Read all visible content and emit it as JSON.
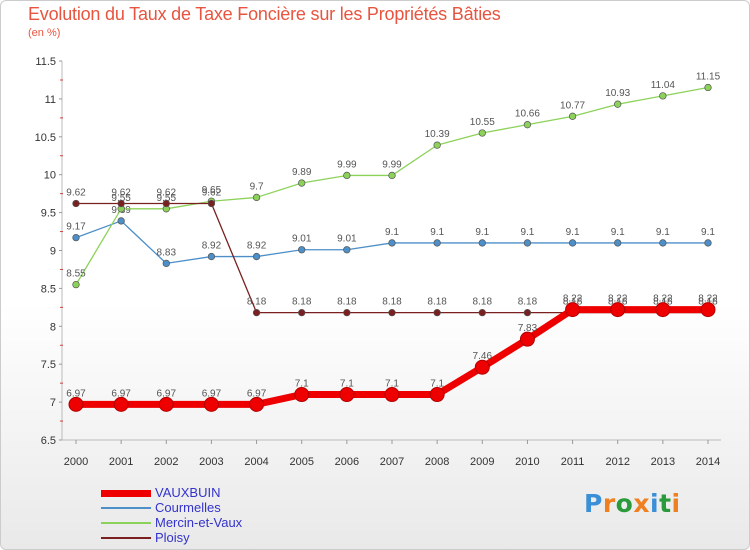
{
  "title": "Evolution du Taux de Taxe Foncière sur les Propriétés Bâties",
  "subtitle": "(en %)",
  "brand": {
    "text": "Proxiti",
    "letters": [
      {
        "ch": "P",
        "color": "#3a8fd6"
      },
      {
        "ch": "r",
        "color": "#f07f1f"
      },
      {
        "ch": "o",
        "color": "#2a9a3a"
      },
      {
        "ch": "x",
        "color": "#f07f1f"
      },
      {
        "ch": "i",
        "color": "#3a8fd6"
      },
      {
        "ch": "t",
        "color": "#2a9a3a"
      },
      {
        "ch": "i",
        "color": "#f07f1f"
      }
    ]
  },
  "chart_data": {
    "type": "line",
    "title": "Evolution du Taux de Taxe Foncière sur les Propriétés Bâties",
    "ylabel": "(en %)",
    "xlabel": "",
    "x": [
      "2000",
      "2001",
      "2002",
      "2003",
      "2004",
      "2005",
      "2006",
      "2007",
      "2008",
      "2009",
      "2010",
      "2011",
      "2012",
      "2013",
      "2014"
    ],
    "ylim": [
      6.5,
      11.5
    ],
    "yticks": [
      "6.5",
      "7",
      "7.5",
      "8",
      "8.5",
      "9",
      "9.5",
      "10",
      "10.5",
      "11",
      "11.5"
    ],
    "grid": false,
    "legend_position": "bottom-left",
    "series": [
      {
        "name": "VAUXBUIN",
        "color": "#ee0000",
        "width": 7,
        "marker": 7,
        "values": [
          6.97,
          6.97,
          6.97,
          6.97,
          6.97,
          7.1,
          7.1,
          7.1,
          7.1,
          7.46,
          7.83,
          8.22,
          8.22,
          8.22,
          8.22
        ],
        "labels": [
          "6.97",
          "6.97",
          "6.97",
          "6.97",
          "6.97",
          "7.1",
          "7.1",
          "7.1",
          "7.1",
          "7.46",
          "7.83",
          "8.22",
          "8.22",
          "8.22",
          "8.22"
        ]
      },
      {
        "name": "Courmelles",
        "color": "#4d8fc8",
        "width": 1.3,
        "marker": 3.3,
        "values": [
          9.17,
          9.39,
          8.83,
          8.92,
          8.92,
          9.01,
          9.01,
          9.1,
          9.1,
          9.1,
          9.1,
          9.1,
          9.1,
          9.1,
          9.1
        ],
        "labels": [
          "9.17",
          "9.39",
          "8.83",
          "8.92",
          "8.92",
          "9.01",
          "9.01",
          "9.1",
          "9.1",
          "9.1",
          "9.1",
          "9.1",
          "9.1",
          "9.1",
          "9.1"
        ]
      },
      {
        "name": "Mercin-et-Vaux",
        "color": "#8cd25a",
        "width": 1.3,
        "marker": 3.3,
        "values": [
          8.55,
          9.55,
          9.55,
          9.65,
          9.7,
          9.89,
          9.99,
          9.99,
          10.39,
          10.55,
          10.66,
          10.77,
          10.93,
          11.04,
          11.15
        ],
        "labels": [
          "8.55",
          "9.55",
          "9.55",
          "9.65",
          "9.7",
          "9.89",
          "9.99",
          "9.99",
          "10.39",
          "10.55",
          "10.66",
          "10.77",
          "10.93",
          "11.04",
          "11.15"
        ]
      },
      {
        "name": "Ploisy",
        "color": "#7a2020",
        "width": 1.3,
        "marker": 3.3,
        "values": [
          9.62,
          9.62,
          9.62,
          9.62,
          8.18,
          8.18,
          8.18,
          8.18,
          8.18,
          8.18,
          8.18,
          8.18,
          8.18,
          8.18,
          8.18
        ],
        "labels": [
          "9.62",
          "9.62",
          "9.62",
          "9.62",
          "8.18",
          "8.18",
          "8.18",
          "8.18",
          "8.18",
          "8.18",
          "8.18",
          "8.18",
          "8.18",
          "8.18",
          "8.18"
        ]
      }
    ]
  }
}
